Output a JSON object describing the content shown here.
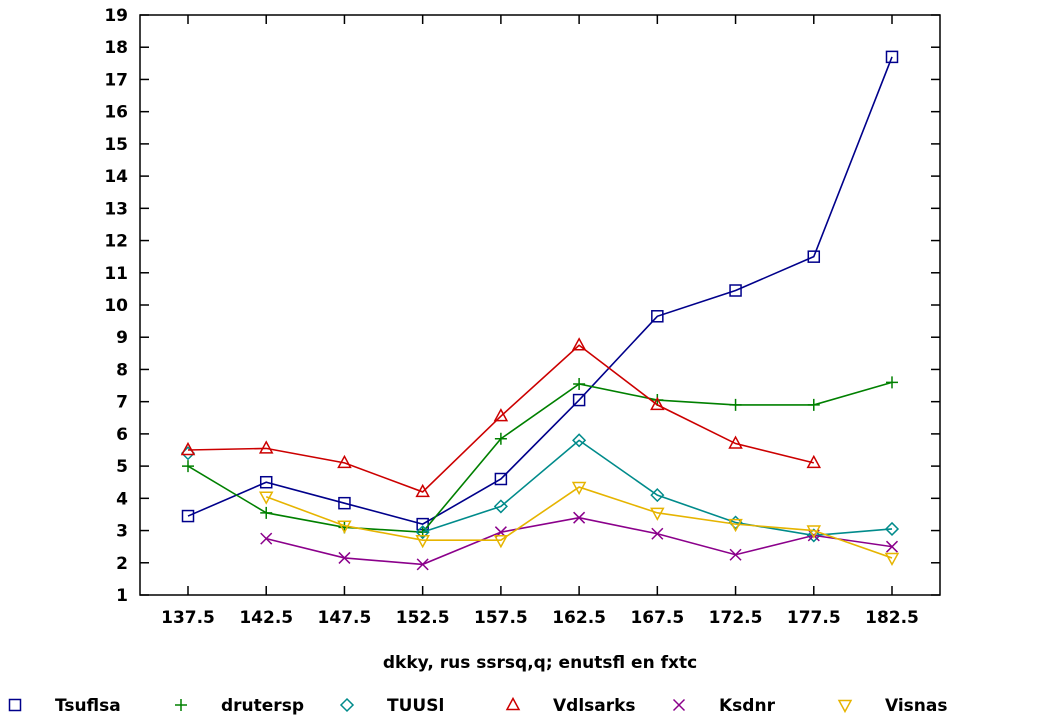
{
  "chart_data": {
    "type": "line",
    "title": "",
    "xlabel": "dkky, rus ssrsq,q; enutsfl en fxtc",
    "ylabel": "",
    "x": [
      "137.5",
      "142.5",
      "147.5",
      "152.5",
      "157.5",
      "162.5",
      "167.5",
      "172.5",
      "177.5",
      "182.5"
    ],
    "ylim": [
      1,
      19
    ],
    "yticks": [
      1,
      2,
      3,
      4,
      5,
      6,
      7,
      8,
      9,
      10,
      11,
      12,
      13,
      14,
      15,
      16,
      17,
      18,
      19
    ],
    "grid": false,
    "legend_position": "bottom",
    "series": [
      {
        "name": "Tsuflsa",
        "color": "#00008b",
        "marker": "square",
        "values": [
          3.45,
          4.5,
          3.85,
          3.2,
          4.6,
          7.05,
          9.65,
          10.45,
          11.5,
          17.7
        ]
      },
      {
        "name": "drutersp",
        "color": "#008000",
        "marker": "plus",
        "values": [
          5.0,
          3.55,
          3.1,
          2.95,
          5.85,
          7.55,
          7.05,
          6.9,
          6.9,
          7.6
        ]
      },
      {
        "name": "TUUSl",
        "color": "#008b8b",
        "marker": "diamond",
        "values": [
          5.4,
          null,
          null,
          2.95,
          3.75,
          5.8,
          4.1,
          3.25,
          2.85,
          3.05
        ]
      },
      {
        "name": "Vdlsarks",
        "color": "#cc0000",
        "marker": "triangle-up",
        "values": [
          5.5,
          5.55,
          5.1,
          4.2,
          6.55,
          8.75,
          6.9,
          5.7,
          5.1,
          null
        ]
      },
      {
        "name": "Ksdnr",
        "color": "#8b008b",
        "marker": "x",
        "values": [
          null,
          2.75,
          2.15,
          1.95,
          2.95,
          3.4,
          2.9,
          2.25,
          2.85,
          2.5
        ]
      },
      {
        "name": "Visnas",
        "color": "#e6b400",
        "marker": "triangle-down",
        "values": [
          null,
          4.05,
          3.15,
          2.7,
          2.7,
          4.35,
          3.55,
          3.2,
          3.0,
          2.15
        ]
      }
    ]
  }
}
